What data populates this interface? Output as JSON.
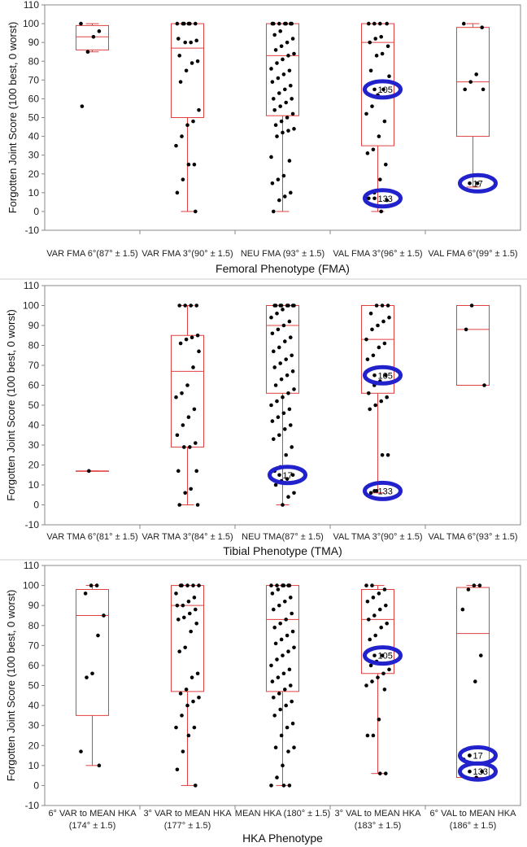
{
  "chart_data": [
    {
      "type": "box",
      "xlabel": "Femoral Phenotype (FMA)",
      "ylabel": "Forgotten Joint Score (100 best, 0 worst)",
      "ylim": [
        -10,
        110
      ],
      "yticks": [
        -10,
        0,
        10,
        20,
        30,
        40,
        50,
        60,
        70,
        80,
        90,
        100,
        110
      ],
      "categories": [
        [
          "VAR FMA 6°(87° ± 1.5)"
        ],
        [
          "VAR FMA 3°(90° ± 1.5)"
        ],
        [
          "NEU FMA (93° ± 1.5)"
        ],
        [
          "VAL FMA 3°(96° ± 1.5)"
        ],
        [
          "VAL FMA 6°(99° ± 1.5)"
        ]
      ],
      "boxes": [
        {
          "min": 85,
          "q1": 86,
          "median": 93,
          "q3": 99,
          "max": 100
        },
        {
          "min": 0,
          "q1": 50,
          "median": 87,
          "q3": 100,
          "max": 100
        },
        {
          "min": 0,
          "q1": 51,
          "median": 83,
          "q3": 100,
          "max": 100
        },
        {
          "min": 0,
          "q1": 35,
          "median": 90,
          "q3": 100,
          "max": 100
        },
        {
          "min": 13,
          "q1": 40,
          "median": 69,
          "q3": 98,
          "max": 100
        }
      ],
      "points": [
        [
          100,
          96,
          93,
          85,
          56
        ],
        [
          100,
          100,
          100,
          100,
          100,
          100,
          92,
          91,
          90,
          90,
          83,
          80,
          79,
          75,
          69,
          54,
          48,
          46,
          40,
          35,
          25,
          25,
          17,
          10,
          0
        ],
        [
          100,
          100,
          100,
          100,
          100,
          100,
          100,
          96,
          94,
          92,
          90,
          88,
          86,
          84,
          83,
          81,
          79,
          76,
          75,
          73,
          71,
          69,
          67,
          65,
          63,
          60,
          60,
          58,
          56,
          54,
          52,
          50,
          48,
          46,
          44,
          43,
          42,
          40,
          29,
          27,
          19,
          17,
          15,
          10,
          8,
          6,
          0
        ],
        [
          100,
          100,
          100,
          100,
          93,
          92,
          90,
          88,
          84,
          83,
          75,
          72,
          65,
          62,
          56,
          52,
          48,
          40,
          33,
          31,
          25,
          17,
          10,
          7,
          6,
          0
        ],
        [
          100,
          98,
          73,
          69,
          65,
          65,
          15
        ]
      ],
      "annotations": [
        {
          "label": "105",
          "category": 3,
          "y": 65
        },
        {
          "label": "133",
          "category": 3,
          "y": 7
        },
        {
          "label": "17",
          "category": 4,
          "y": 15
        }
      ]
    },
    {
      "type": "box",
      "xlabel": "Tibial Phenotype (TMA)",
      "ylabel": "Forgotten Joint Score (100 best, 0 worst)",
      "ylim": [
        -10,
        110
      ],
      "yticks": [
        -10,
        0,
        10,
        20,
        30,
        40,
        50,
        60,
        70,
        80,
        90,
        100,
        110
      ],
      "categories": [
        [
          "VAR TMA 6°(81° ± 1.5)"
        ],
        [
          "VAR TMA 3°(84° ± 1.5)"
        ],
        [
          "NEU TMA(87° ± 1.5)"
        ],
        [
          "VAL TMA 3°(90° ± 1.5)"
        ],
        [
          "VAL TMA 6°(93° ± 1.5)"
        ]
      ],
      "boxes": [
        {
          "min": 17,
          "q1": 17,
          "median": 17,
          "q3": 17,
          "max": 17
        },
        {
          "min": 0,
          "q1": 29,
          "median": 67,
          "q3": 85,
          "max": 100
        },
        {
          "min": 0,
          "q1": 56,
          "median": 90,
          "q3": 100,
          "max": 100
        },
        {
          "min": 6,
          "q1": 56,
          "median": 83,
          "q3": 100,
          "max": 100
        },
        {
          "min": 60,
          "q1": 60,
          "median": 88,
          "q3": 100,
          "max": 100
        }
      ],
      "points": [
        [
          17
        ],
        [
          100,
          100,
          100,
          100,
          85,
          84,
          83,
          81,
          77,
          69,
          60,
          56,
          54,
          48,
          44,
          40,
          35,
          31,
          29,
          29,
          17,
          17,
          8,
          6,
          0,
          0
        ],
        [
          100,
          100,
          100,
          100,
          100,
          100,
          100,
          100,
          98,
          96,
          94,
          92,
          90,
          88,
          86,
          84,
          82,
          79,
          77,
          75,
          73,
          71,
          69,
          67,
          65,
          63,
          60,
          58,
          56,
          54,
          52,
          50,
          48,
          46,
          44,
          42,
          40,
          38,
          35,
          33,
          29,
          25,
          19,
          17,
          15,
          13,
          12,
          10,
          6,
          4,
          0
        ],
        [
          100,
          100,
          100,
          96,
          94,
          92,
          90,
          88,
          83,
          81,
          79,
          75,
          73,
          65,
          62,
          60,
          56,
          54,
          52,
          50,
          48,
          25,
          25,
          7,
          6
        ],
        [
          100,
          88,
          60
        ]
      ],
      "annotations": [
        {
          "label": "105",
          "category": 3,
          "y": 65
        },
        {
          "label": "17",
          "category": 2,
          "y": 15
        },
        {
          "label": "133",
          "category": 3,
          "y": 7
        }
      ]
    },
    {
      "type": "box",
      "xlabel": "HKA Phenotype",
      "ylabel": "Forgotten Joint Score (100 best, 0 worst)",
      "ylim": [
        -10,
        110
      ],
      "yticks": [
        -10,
        0,
        10,
        20,
        30,
        40,
        50,
        60,
        70,
        80,
        90,
        100,
        110
      ],
      "categories": [
        [
          "6° VAR to MEAN HKA",
          "(174° ± 1.5)"
        ],
        [
          "3° VAR to MEAN HKA",
          "(177° ± 1.5)"
        ],
        [
          "MEAN HKA (180° ± 1.5)",
          ""
        ],
        [
          "3° VAL to MEAN HKA",
          "(183° ± 1.5)"
        ],
        [
          "6° VAL to MEAN HKA",
          "(186° ± 1.5)"
        ]
      ],
      "boxes": [
        {
          "min": 10,
          "q1": 35,
          "median": 85,
          "q3": 98,
          "max": 100
        },
        {
          "min": 0,
          "q1": 47,
          "median": 90,
          "q3": 100,
          "max": 100
        },
        {
          "min": 0,
          "q1": 47,
          "median": 83,
          "q3": 100,
          "max": 100
        },
        {
          "min": 6,
          "q1": 56,
          "median": 83,
          "q3": 98,
          "max": 100
        },
        {
          "min": 4,
          "q1": 4,
          "median": 76,
          "q3": 99,
          "max": 100
        }
      ],
      "points": [
        [
          100,
          100,
          96,
          85,
          75,
          56,
          54,
          17,
          10
        ],
        [
          100,
          100,
          100,
          100,
          100,
          96,
          94,
          92,
          90,
          90,
          88,
          86,
          84,
          83,
          81,
          77,
          69,
          67,
          56,
          54,
          48,
          46,
          44,
          42,
          40,
          35,
          29,
          29,
          25,
          17,
          8,
          0
        ],
        [
          100,
          100,
          100,
          100,
          100,
          100,
          98,
          96,
          94,
          92,
          90,
          88,
          86,
          83,
          81,
          79,
          77,
          75,
          73,
          71,
          69,
          67,
          65,
          63,
          60,
          58,
          56,
          54,
          52,
          50,
          48,
          46,
          44,
          42,
          40,
          38,
          35,
          31,
          29,
          25,
          19,
          19,
          17,
          10,
          4,
          0,
          0,
          0
        ],
        [
          100,
          100,
          98,
          96,
          94,
          92,
          90,
          88,
          85,
          83,
          81,
          79,
          75,
          73,
          69,
          65,
          62,
          60,
          58,
          56,
          54,
          52,
          50,
          48,
          33,
          25,
          25,
          6,
          6
        ],
        [
          100,
          100,
          98,
          88,
          65,
          52,
          15,
          13,
          7,
          4
        ]
      ],
      "annotations": [
        {
          "label": "105",
          "category": 3,
          "y": 65
        },
        {
          "label": "17",
          "category": 4,
          "y": 15
        },
        {
          "label": "133",
          "category": 4,
          "y": 7
        }
      ]
    }
  ]
}
